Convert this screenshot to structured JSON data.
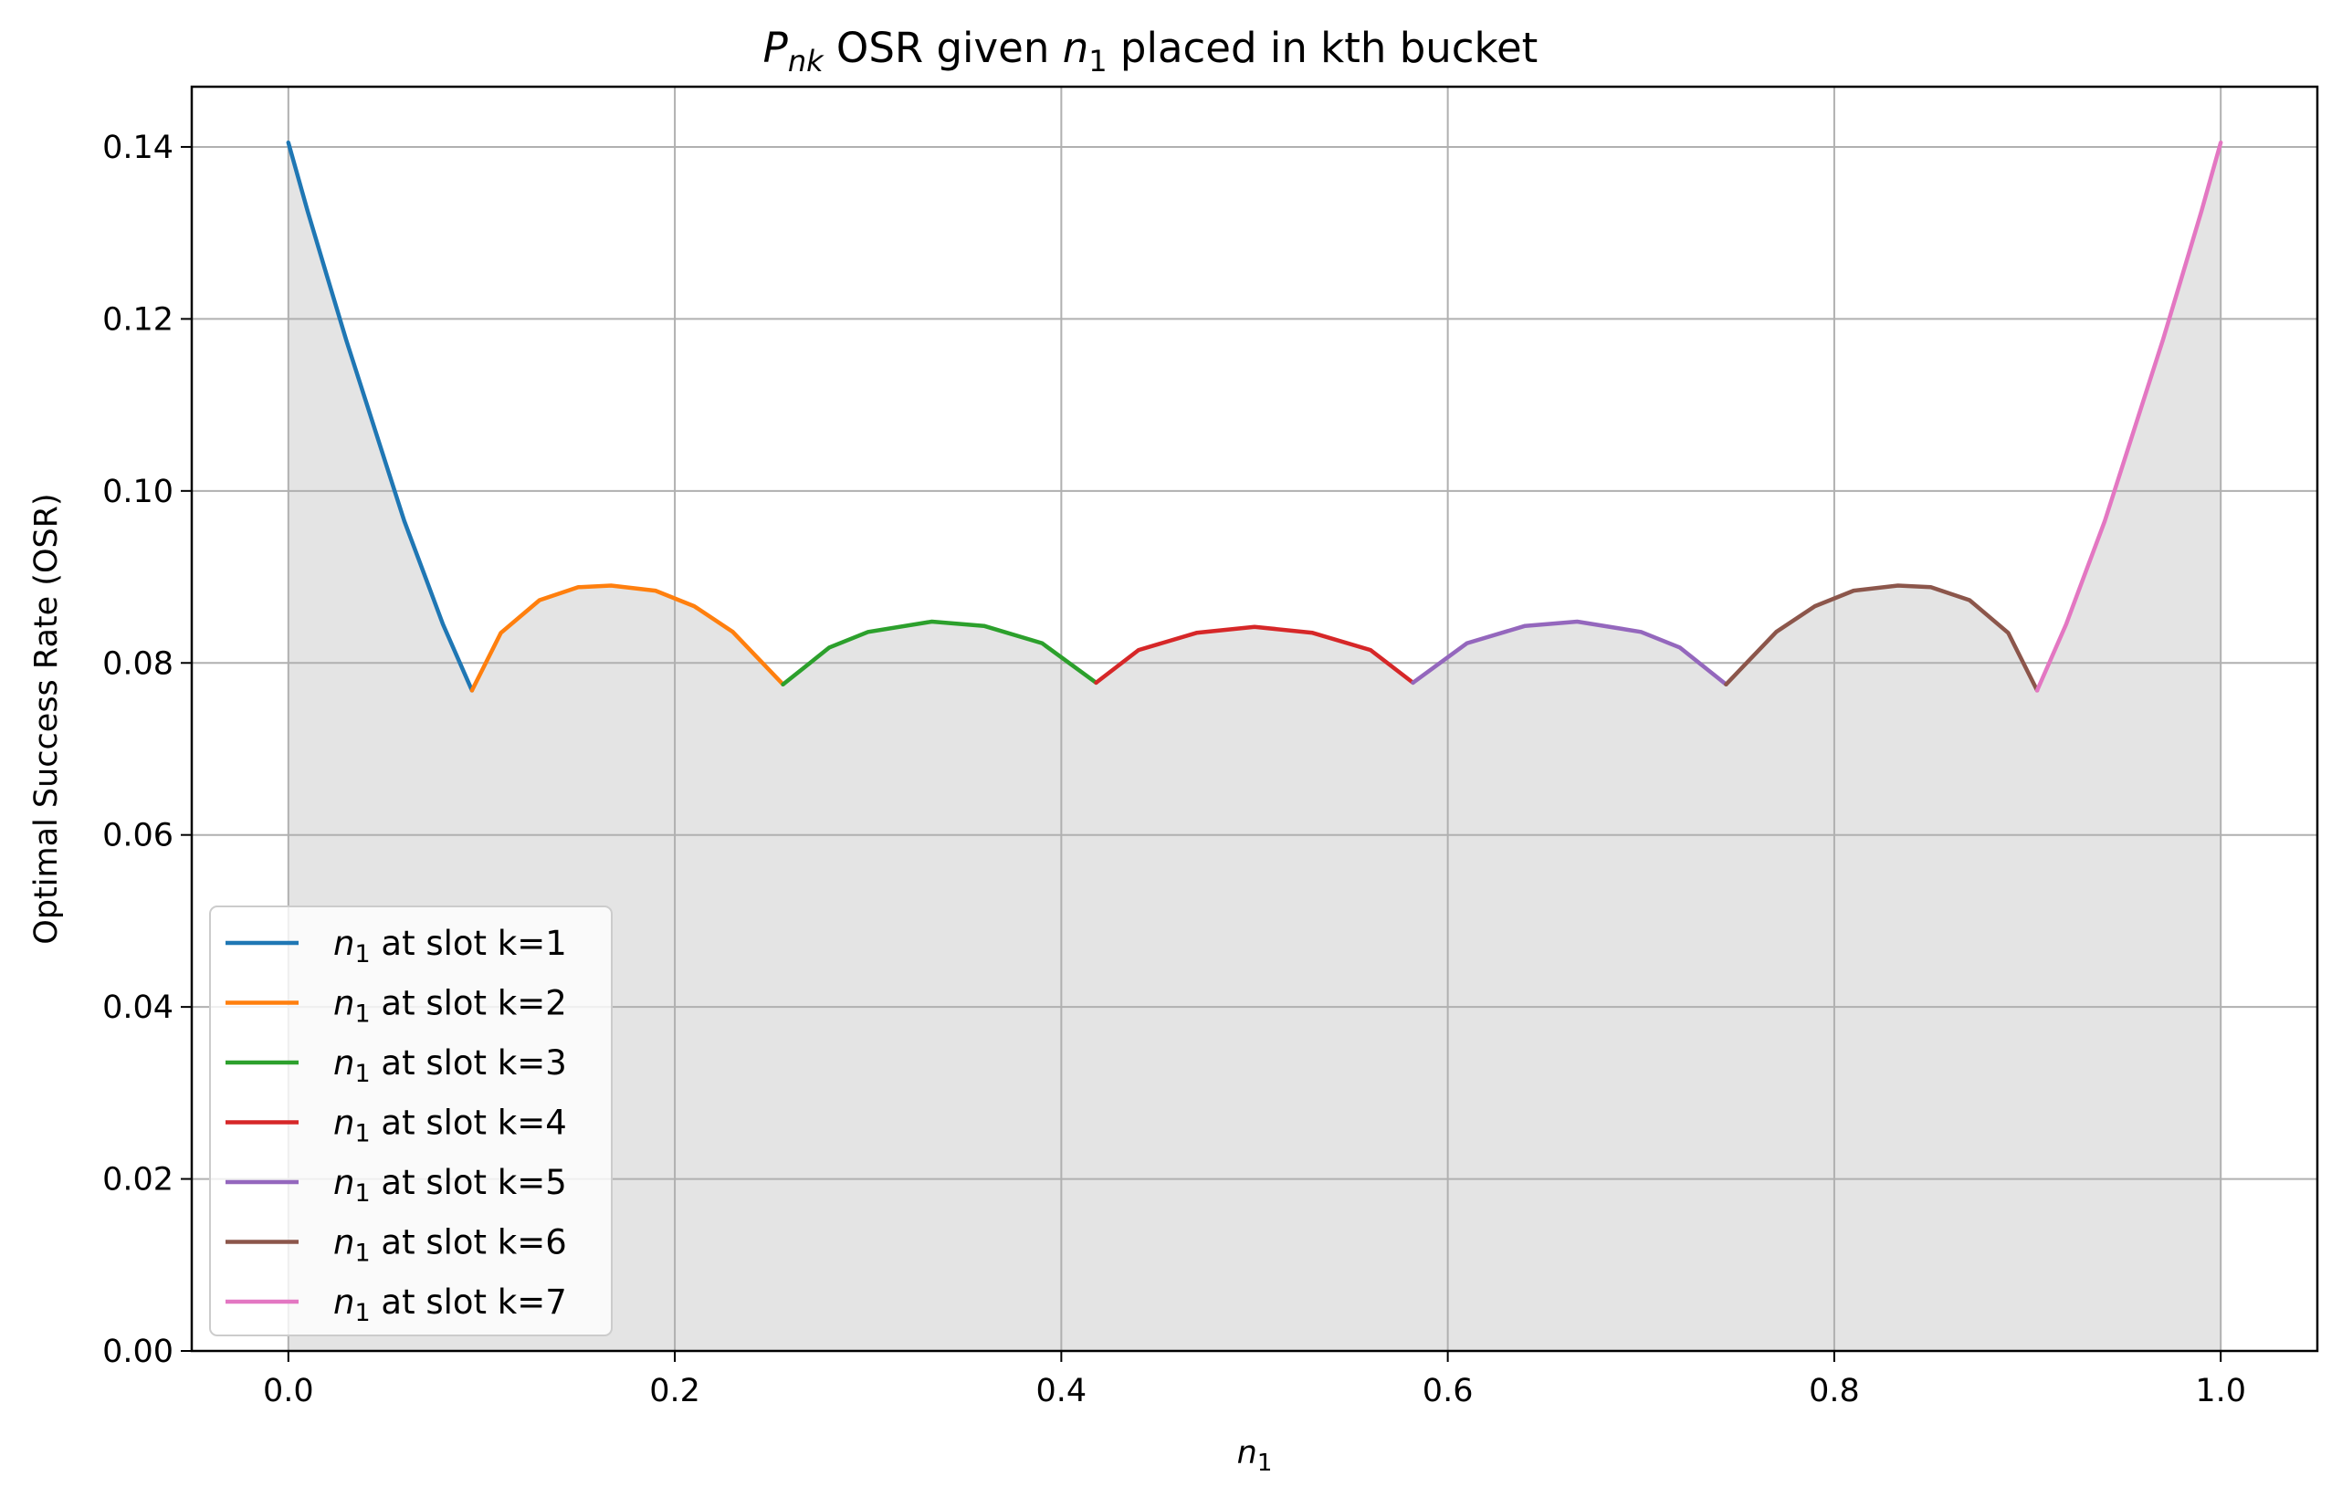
{
  "chart_data": {
    "type": "line",
    "title": {
      "symbol": "P",
      "subscript": "nk",
      "rest": " OSR given ",
      "var": "n",
      "var_sub": "1",
      "tail": " placed in kth bucket"
    },
    "xlabel": {
      "var": "n",
      "sub": "1"
    },
    "ylabel": "Optimal Success Rate (OSR)",
    "xlim": [
      -0.05,
      1.05
    ],
    "ylim": [
      0.0,
      0.147
    ],
    "x_ticks": [
      0.0,
      0.2,
      0.4,
      0.6,
      0.8,
      1.0
    ],
    "x_tick_labels": [
      "0.0",
      "0.2",
      "0.4",
      "0.6",
      "0.8",
      "1.0"
    ],
    "y_ticks": [
      0.0,
      0.02,
      0.04,
      0.06,
      0.08,
      0.1,
      0.12,
      0.14
    ],
    "y_tick_labels": [
      "0.00",
      "0.02",
      "0.04",
      "0.06",
      "0.08",
      "0.10",
      "0.12",
      "0.14"
    ],
    "grid": true,
    "legend_position": "lower-left",
    "fill_under": {
      "color": "#e4e4e4"
    },
    "series": [
      {
        "name": "at slot k=1",
        "color": "#1f77b4",
        "x": [
          0.0,
          0.01,
          0.02,
          0.03,
          0.04,
          0.05,
          0.06,
          0.07,
          0.08,
          0.095
        ],
        "y": [
          0.1405,
          0.1325,
          0.125,
          0.1175,
          0.1105,
          0.1035,
          0.0965,
          0.0905,
          0.0845,
          0.0768
        ]
      },
      {
        "name": "at slot k=2",
        "color": "#ff7f0e",
        "x": [
          0.095,
          0.11,
          0.13,
          0.15,
          0.167,
          0.19,
          0.21,
          0.23,
          0.256
        ],
        "y": [
          0.0768,
          0.0835,
          0.0873,
          0.0888,
          0.089,
          0.0884,
          0.0866,
          0.0836,
          0.0775
        ]
      },
      {
        "name": "at slot k=3",
        "color": "#2ca02c",
        "x": [
          0.256,
          0.28,
          0.3,
          0.333,
          0.36,
          0.39,
          0.418
        ],
        "y": [
          0.0775,
          0.0818,
          0.0836,
          0.0848,
          0.0843,
          0.0823,
          0.0777
        ]
      },
      {
        "name": "at slot k=4",
        "color": "#d62728",
        "x": [
          0.418,
          0.44,
          0.47,
          0.5,
          0.53,
          0.56,
          0.582
        ],
        "y": [
          0.0777,
          0.0815,
          0.0835,
          0.0842,
          0.0835,
          0.0815,
          0.0777
        ]
      },
      {
        "name": "at slot k=5",
        "color": "#9467bd",
        "x": [
          0.582,
          0.61,
          0.64,
          0.667,
          0.7,
          0.72,
          0.744
        ],
        "y": [
          0.0777,
          0.0823,
          0.0843,
          0.0848,
          0.0836,
          0.0818,
          0.0775
        ]
      },
      {
        "name": "at slot k=6",
        "color": "#8c564b",
        "x": [
          0.744,
          0.77,
          0.79,
          0.81,
          0.833,
          0.85,
          0.87,
          0.89,
          0.905
        ],
        "y": [
          0.0775,
          0.0836,
          0.0866,
          0.0884,
          0.089,
          0.0888,
          0.0873,
          0.0835,
          0.0768
        ]
      },
      {
        "name": "at slot k=7",
        "color": "#e377c2",
        "x": [
          0.905,
          0.92,
          0.93,
          0.94,
          0.95,
          0.96,
          0.97,
          0.98,
          0.99,
          1.0
        ],
        "y": [
          0.0768,
          0.0845,
          0.0905,
          0.0965,
          0.1035,
          0.1105,
          0.1175,
          0.125,
          0.1325,
          0.1405
        ]
      }
    ],
    "legend_var": {
      "var": "n",
      "sub": "1"
    }
  }
}
